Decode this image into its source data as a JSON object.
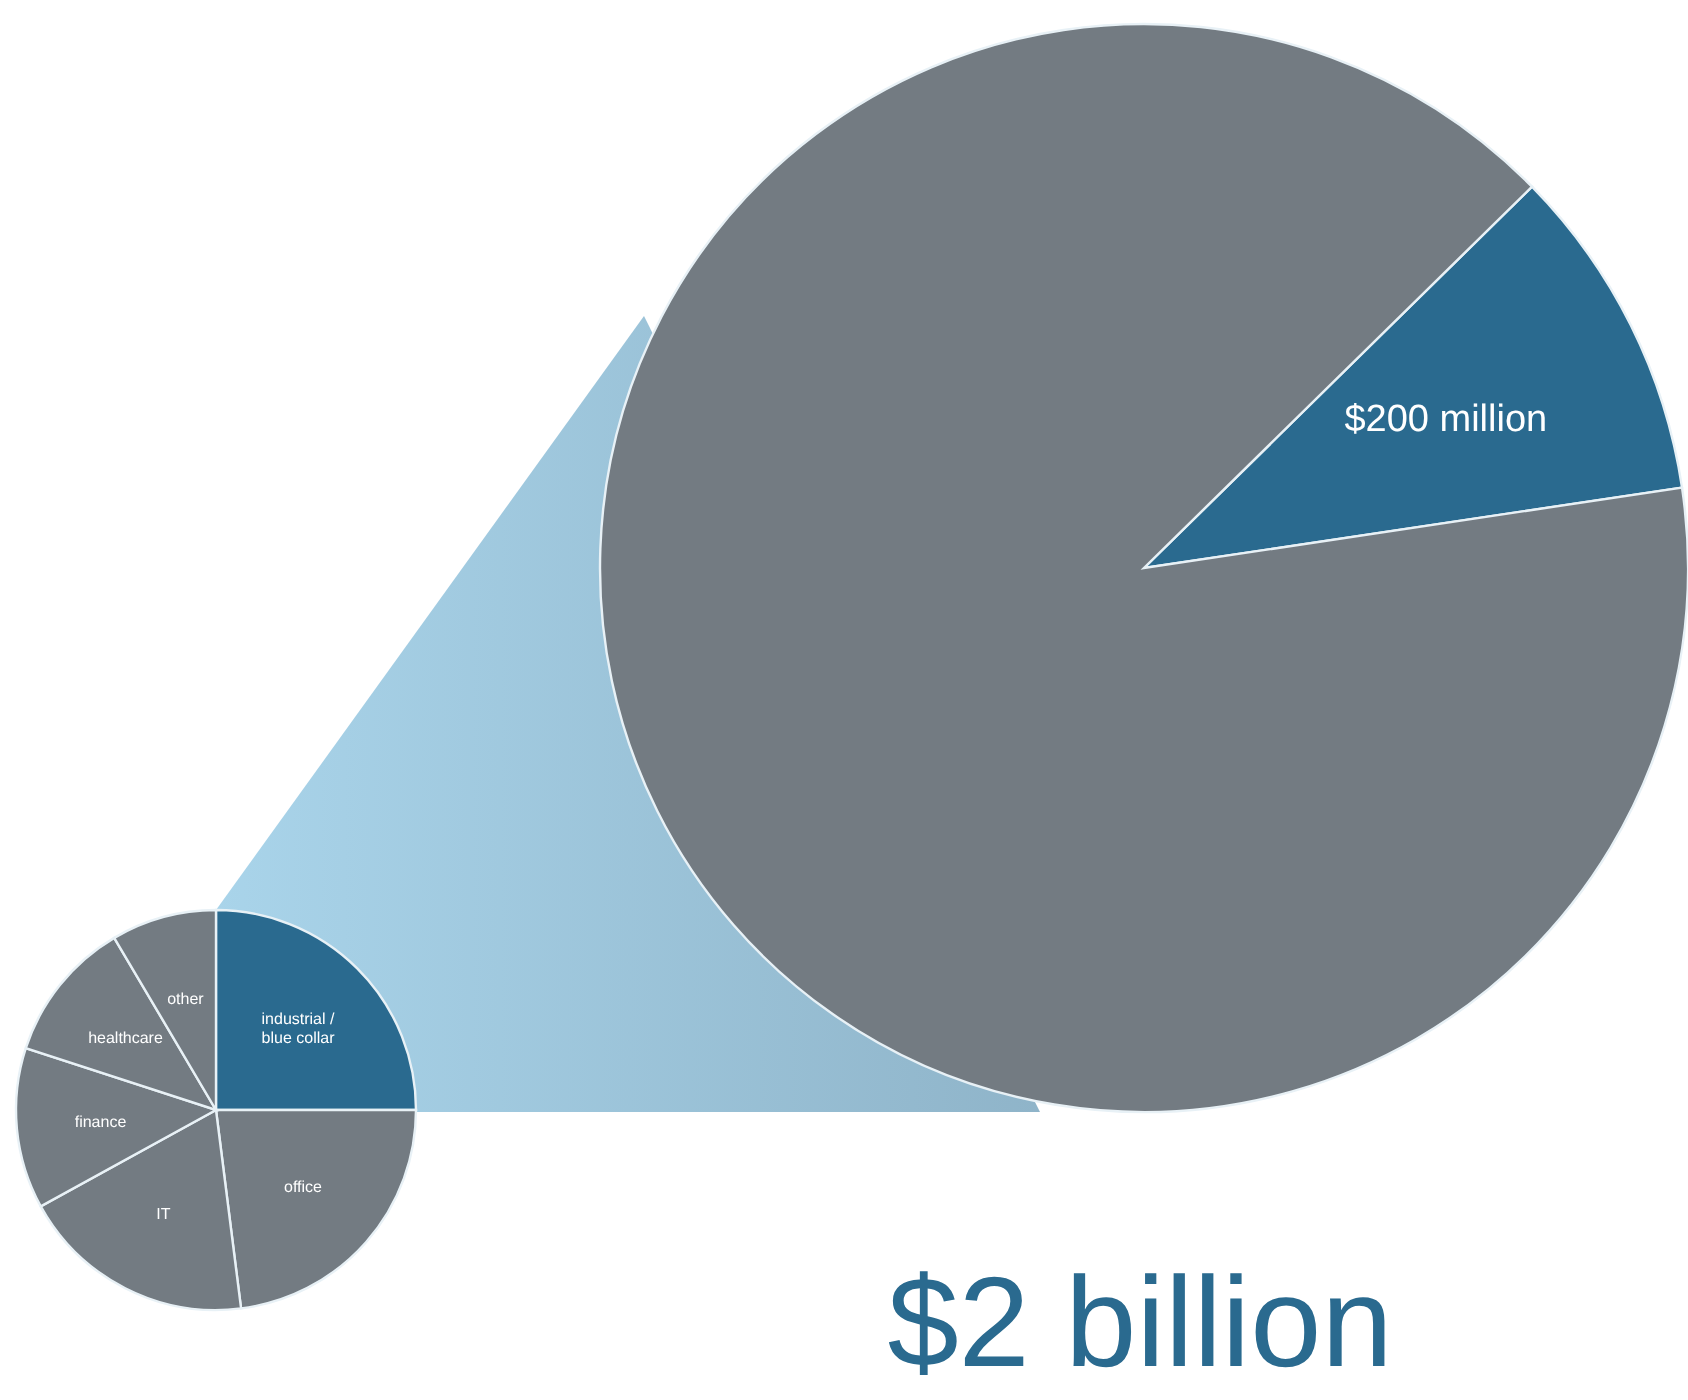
{
  "chart_data": [
    {
      "type": "pie",
      "categories": [
        null,
        null
      ],
      "values": [
        200,
        1800
      ],
      "colors": [
        "#2a6a8f",
        "#737b82"
      ],
      "value_labels": [
        "$200 million",
        null
      ]
    },
    {
      "type": "pie",
      "categories": [
        "industrial /\nblue collar",
        "office",
        "IT",
        "finance",
        "healthcare",
        "other"
      ],
      "values": [
        25,
        23,
        19,
        13,
        11.5,
        8.5
      ],
      "colors": [
        "#2a6a8f",
        "#737b82",
        "#737b82",
        "#737b82",
        "#737b82",
        "#737b82"
      ],
      "annotations": [
        "$2 billion"
      ]
    }
  ]
}
